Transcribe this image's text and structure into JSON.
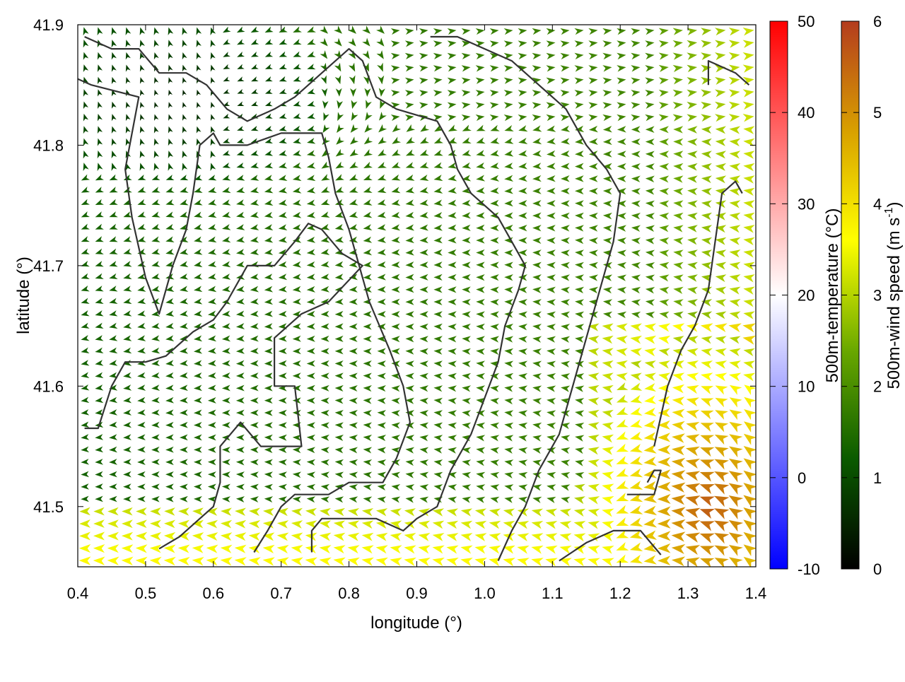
{
  "chart_data": {
    "type": "heatmap",
    "subtype": "wind-vector-field",
    "xlabel": "longitude (°)",
    "ylabel": "latitude (°)",
    "xlim": [
      0.4,
      1.4
    ],
    "ylim": [
      41.45,
      41.9
    ],
    "x_ticks": [
      "0.4",
      "0.5",
      "0.6",
      "0.7",
      "0.8",
      "0.9",
      "1.0",
      "1.1",
      "1.2",
      "1.3",
      "1.4"
    ],
    "y_ticks": [
      "41.5",
      "41.6",
      "41.7",
      "41.8",
      "41.9"
    ],
    "x_tick_values": [
      0.4,
      0.5,
      0.6,
      0.7,
      0.8,
      0.9,
      1.0,
      1.1,
      1.2,
      1.3,
      1.4
    ],
    "y_tick_values": [
      41.5,
      41.6,
      41.7,
      41.8,
      41.9
    ],
    "colorbars": [
      {
        "label": "500m-temperature (°C)",
        "range": [
          -10,
          50
        ],
        "ticks": [
          "-10",
          "0",
          "10",
          "20",
          "30",
          "40",
          "50"
        ],
        "tick_values": [
          -10,
          0,
          10,
          20,
          30,
          40,
          50
        ],
        "colors": [
          "#0000ff",
          "#ffffff",
          "#ff0000"
        ]
      },
      {
        "label": "500m-wind speed (m s",
        "label_sup": "-1",
        "label_end": ")",
        "range": [
          0,
          6
        ],
        "ticks": [
          "0",
          "1",
          "2",
          "3",
          "4",
          "5",
          "6"
        ],
        "tick_values": [
          0,
          1,
          2,
          3,
          4,
          5,
          6
        ],
        "colors": [
          "#000000",
          "#0a5a00",
          "#6aa800",
          "#ffff00",
          "#d8a000",
          "#b43c1e"
        ]
      }
    ],
    "wind_field_description_free": true,
    "contours": [
      [
        [
          0.52,
          41.465
        ],
        [
          0.55,
          41.475
        ],
        [
          0.58,
          41.49
        ],
        [
          0.6,
          41.5
        ],
        [
          0.61,
          41.52
        ],
        [
          0.61,
          41.55
        ],
        [
          0.64,
          41.57
        ],
        [
          0.67,
          41.55
        ],
        [
          0.7,
          41.55
        ],
        [
          0.73,
          41.55
        ],
        [
          0.72,
          41.6
        ],
        [
          0.69,
          41.6
        ],
        [
          0.69,
          41.64
        ],
        [
          0.73,
          41.66
        ],
        [
          0.77,
          41.67
        ],
        [
          0.82,
          41.7
        ],
        [
          0.79,
          41.71
        ],
        [
          0.76,
          41.73
        ],
        [
          0.74,
          41.735
        ],
        [
          0.72,
          41.72
        ],
        [
          0.69,
          41.7
        ],
        [
          0.65,
          41.7
        ],
        [
          0.62,
          41.67
        ],
        [
          0.6,
          41.655
        ],
        [
          0.57,
          41.645
        ],
        [
          0.53,
          41.625
        ],
        [
          0.5,
          41.62
        ],
        [
          0.47,
          41.62
        ],
        [
          0.45,
          41.6
        ],
        [
          0.43,
          41.565
        ],
        [
          0.41,
          41.565
        ]
      ],
      [
        [
          0.66,
          41.462
        ],
        [
          0.68,
          41.48
        ],
        [
          0.7,
          41.5
        ],
        [
          0.72,
          41.51
        ],
        [
          0.77,
          41.51
        ],
        [
          0.8,
          41.52
        ],
        [
          0.85,
          41.52
        ],
        [
          0.87,
          41.54
        ],
        [
          0.89,
          41.57
        ],
        [
          0.88,
          41.6
        ],
        [
          0.86,
          41.63
        ],
        [
          0.83,
          41.67
        ],
        [
          0.82,
          41.69
        ],
        [
          0.8,
          41.73
        ],
        [
          0.78,
          41.76
        ],
        [
          0.77,
          41.79
        ],
        [
          0.76,
          41.81
        ],
        [
          0.7,
          41.81
        ],
        [
          0.65,
          41.8
        ],
        [
          0.61,
          41.8
        ],
        [
          0.6,
          41.81
        ],
        [
          0.58,
          41.8
        ],
        [
          0.57,
          41.76
        ],
        [
          0.56,
          41.73
        ],
        [
          0.54,
          41.7
        ],
        [
          0.52,
          41.66
        ],
        [
          0.5,
          41.69
        ],
        [
          0.48,
          41.74
        ],
        [
          0.47,
          41.78
        ],
        [
          0.49,
          41.84
        ],
        [
          0.42,
          41.85
        ],
        [
          0.4,
          41.855
        ]
      ],
      [
        [
          0.745,
          41.462
        ],
        [
          0.745,
          41.48
        ],
        [
          0.76,
          41.49
        ],
        [
          0.8,
          41.49
        ],
        [
          0.84,
          41.49
        ],
        [
          0.88,
          41.48
        ],
        [
          0.9,
          41.49
        ],
        [
          0.93,
          41.5
        ],
        [
          0.95,
          41.53
        ],
        [
          0.98,
          41.56
        ],
        [
          1.0,
          41.59
        ],
        [
          1.02,
          41.62
        ],
        [
          1.03,
          41.65
        ],
        [
          1.05,
          41.68
        ],
        [
          1.06,
          41.7
        ],
        [
          1.04,
          41.72
        ],
        [
          1.02,
          41.74
        ],
        [
          0.98,
          41.76
        ],
        [
          0.96,
          41.78
        ],
        [
          0.95,
          41.8
        ],
        [
          0.93,
          41.82
        ],
        [
          0.87,
          41.83
        ],
        [
          0.84,
          41.84
        ],
        [
          0.82,
          41.87
        ],
        [
          0.8,
          41.88
        ],
        [
          0.76,
          41.86
        ],
        [
          0.72,
          41.84
        ],
        [
          0.69,
          41.83
        ],
        [
          0.65,
          41.82
        ],
        [
          0.62,
          41.83
        ],
        [
          0.59,
          41.85
        ],
        [
          0.56,
          41.86
        ],
        [
          0.52,
          41.86
        ],
        [
          0.49,
          41.88
        ],
        [
          0.45,
          41.88
        ],
        [
          0.41,
          41.89
        ]
      ],
      [
        [
          1.02,
          41.455
        ],
        [
          1.04,
          41.48
        ],
        [
          1.06,
          41.5
        ],
        [
          1.08,
          41.53
        ],
        [
          1.11,
          41.56
        ],
        [
          1.13,
          41.6
        ],
        [
          1.15,
          41.64
        ],
        [
          1.17,
          41.68
        ],
        [
          1.19,
          41.72
        ],
        [
          1.2,
          41.76
        ],
        [
          1.18,
          41.78
        ],
        [
          1.15,
          41.8
        ],
        [
          1.12,
          41.83
        ],
        [
          1.08,
          41.85
        ],
        [
          1.04,
          41.87
        ],
        [
          1.0,
          41.88
        ],
        [
          0.96,
          41.89
        ],
        [
          0.92,
          41.89
        ]
      ],
      [
        [
          1.11,
          41.455
        ],
        [
          1.15,
          41.47
        ],
        [
          1.19,
          41.48
        ],
        [
          1.23,
          41.48
        ],
        [
          1.26,
          41.46
        ]
      ],
      [
        [
          1.21,
          41.51
        ],
        [
          1.25,
          41.51
        ],
        [
          1.26,
          41.53
        ],
        [
          1.25,
          41.53
        ],
        [
          1.24,
          41.52
        ]
      ],
      [
        [
          1.33,
          41.85
        ],
        [
          1.33,
          41.87
        ],
        [
          1.37,
          41.86
        ],
        [
          1.39,
          41.85
        ]
      ],
      [
        [
          1.25,
          41.55
        ],
        [
          1.27,
          41.6
        ],
        [
          1.29,
          41.63
        ],
        [
          1.31,
          41.65
        ],
        [
          1.33,
          41.68
        ],
        [
          1.34,
          41.72
        ],
        [
          1.35,
          41.76
        ],
        [
          1.37,
          41.77
        ],
        [
          1.38,
          41.76
        ]
      ]
    ]
  }
}
